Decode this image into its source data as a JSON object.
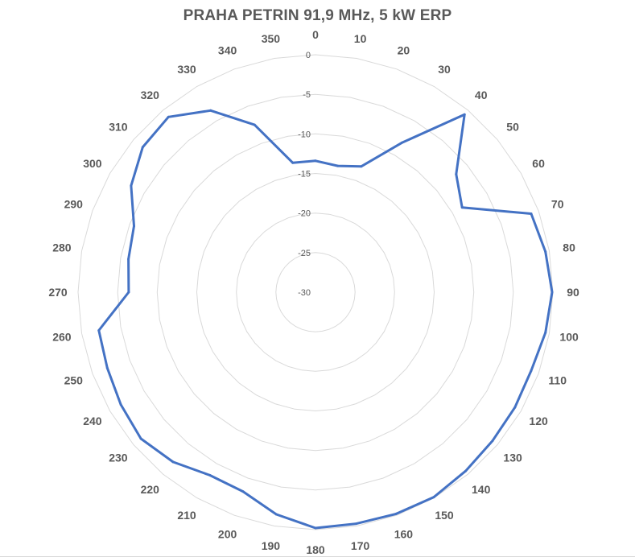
{
  "chart_data": {
    "type": "radar",
    "title": "PRAHA PETRIN 91,9 MHz, 5 kW ERP",
    "angles": [
      0,
      10,
      20,
      30,
      40,
      50,
      60,
      70,
      80,
      90,
      100,
      110,
      120,
      130,
      140,
      150,
      160,
      170,
      180,
      190,
      200,
      210,
      220,
      230,
      240,
      250,
      260,
      270,
      280,
      290,
      300,
      310,
      320,
      330,
      340,
      350
    ],
    "angle_labels": [
      "0",
      "10",
      "20",
      "30",
      "40",
      "50",
      "60",
      "70",
      "80",
      "90",
      "100",
      "110",
      "120",
      "130",
      "140",
      "150",
      "160",
      "170",
      "180",
      "190",
      "200",
      "210",
      "220",
      "230",
      "240",
      "250",
      "260",
      "270",
      "280",
      "290",
      "300",
      "310",
      "320",
      "330",
      "340",
      "350"
    ],
    "radial_axis": {
      "min": -30,
      "max": 0,
      "ticks": [
        0,
        -5,
        -10,
        -15,
        -20,
        -25,
        -30
      ],
      "tick_labels": [
        "0",
        "-5",
        "-10",
        "-15",
        "-20",
        "-25",
        "-30"
      ]
    },
    "gridlines": true,
    "series": [
      {
        "color": "#4472c4",
        "values": [
          -13.4,
          -13.8,
          -13.1,
          -8.2,
          -0.7,
          -6.8,
          -8.6,
          -1.0,
          -0.5,
          -0.1,
          -0.5,
          -1.0,
          -0.9,
          -0.8,
          -0.5,
          -0.1,
          -0.2,
          -0.3,
          -0.2,
          -1.5,
          -3.2,
          -3.3,
          -2.0,
          -1.2,
          -1.6,
          -2.0,
          -2.2,
          -6.4,
          -6.0,
          -5.6,
          -3.1,
          -1.5,
          -1.1,
          -3.5,
          -7.5,
          -13.4
        ]
      }
    ]
  }
}
